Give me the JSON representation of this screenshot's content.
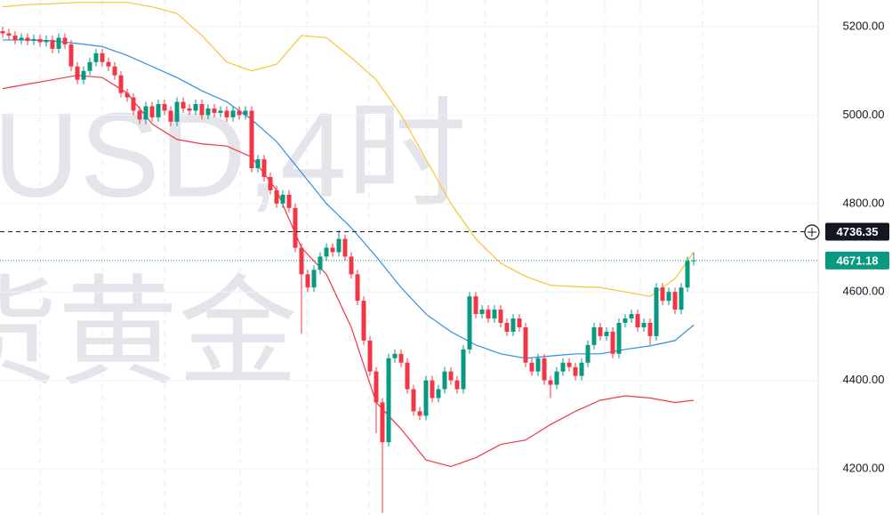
{
  "chart_data": {
    "type": "candlestick",
    "watermark": [
      "USD,4时",
      "货黄金"
    ],
    "up_color": "#089981",
    "down_color": "#f23645",
    "open": [
      5190,
      5185,
      5180,
      5170,
      5175,
      5168,
      5172,
      5165,
      5170,
      5150,
      5175,
      5160,
      5110,
      5080,
      5100,
      5120,
      5140,
      5120,
      5110,
      5090,
      5050,
      5040,
      5010,
      4990,
      5020,
      4995,
      5025,
      5010,
      4985,
      5030,
      5015,
      5010,
      5025,
      5000,
      5015,
      5005,
      5010,
      4995,
      5010,
      5000,
      5010,
      4880,
      4900,
      4860,
      4830,
      4800,
      4820,
      4790,
      4700,
      4640,
      4610,
      4650,
      4680,
      4700,
      4690,
      4720,
      4680,
      4640,
      4580,
      4490,
      4420,
      4350,
      4260,
      4450,
      4460,
      4440,
      4380,
      4330,
      4320,
      4400,
      4360,
      4380,
      4420,
      4400,
      4380,
      4470,
      4590,
      4550,
      4560,
      4540,
      4560,
      4530,
      4510,
      4540,
      4520,
      4440,
      4420,
      4450,
      4400,
      4390,
      4420,
      4440,
      4430,
      4410,
      4440,
      4480,
      4520,
      4500,
      4510,
      4460,
      4530,
      4540,
      4550,
      4520,
      4530,
      4500,
      4610,
      4580,
      4600,
      4560,
      4610,
      4670
    ],
    "high": [
      5200,
      5195,
      5190,
      5185,
      5185,
      5182,
      5182,
      5180,
      5180,
      5185,
      5185,
      5170,
      5120,
      5110,
      5130,
      5150,
      5150,
      5130,
      5120,
      5100,
      5060,
      5050,
      5020,
      5030,
      5030,
      5035,
      5035,
      5020,
      5040,
      5040,
      5025,
      5035,
      5035,
      5025,
      5025,
      5020,
      5020,
      5020,
      5020,
      5020,
      5020,
      4910,
      4910,
      4870,
      4840,
      4830,
      4830,
      4800,
      4710,
      4650,
      4660,
      4690,
      4710,
      4710,
      4740,
      4730,
      4690,
      4650,
      4590,
      4500,
      4430,
      4360,
      4460,
      4470,
      4470,
      4450,
      4390,
      4340,
      4410,
      4410,
      4390,
      4430,
      4430,
      4410,
      4480,
      4600,
      4600,
      4570,
      4570,
      4570,
      4570,
      4540,
      4550,
      4550,
      4530,
      4450,
      4460,
      4460,
      4410,
      4430,
      4450,
      4450,
      4440,
      4450,
      4490,
      4530,
      4530,
      4520,
      4520,
      4540,
      4550,
      4560,
      4560,
      4540,
      4540,
      4620,
      4620,
      4610,
      4610,
      4620,
      4680,
      4690
    ],
    "low": [
      5175,
      5170,
      5160,
      5160,
      5158,
      5158,
      5155,
      5155,
      5140,
      5140,
      5150,
      5100,
      5070,
      5070,
      5090,
      5110,
      5110,
      5100,
      5080,
      5040,
      5030,
      5000,
      4980,
      4980,
      4985,
      4985,
      5000,
      4975,
      4975,
      5005,
      5000,
      5000,
      4990,
      4990,
      4995,
      4995,
      4985,
      4985,
      4990,
      4990,
      4870,
      4870,
      4850,
      4820,
      4790,
      4790,
      4780,
      4690,
      4505,
      4600,
      4600,
      4640,
      4670,
      4680,
      4680,
      4670,
      4630,
      4570,
      4480,
      4410,
      4280,
      4100,
      4250,
      4440,
      4430,
      4370,
      4320,
      4310,
      4310,
      4350,
      4350,
      4370,
      4390,
      4370,
      4370,
      4460,
      4540,
      4540,
      4530,
      4530,
      4520,
      4500,
      4500,
      4510,
      4430,
      4410,
      4410,
      4390,
      4360,
      4380,
      4410,
      4420,
      4400,
      4400,
      4430,
      4470,
      4490,
      4490,
      4450,
      4450,
      4520,
      4530,
      4510,
      4510,
      4480,
      4490,
      4570,
      4570,
      4550,
      4550,
      4600,
      4660
    ],
    "close": [
      5185,
      5180,
      5170,
      5175,
      5168,
      5172,
      5165,
      5170,
      5150,
      5175,
      5160,
      5110,
      5080,
      5100,
      5120,
      5140,
      5120,
      5110,
      5090,
      5050,
      5040,
      5010,
      4990,
      5020,
      4995,
      5025,
      5010,
      4985,
      5030,
      5015,
      5010,
      5025,
      5000,
      5015,
      5005,
      5010,
      4995,
      5010,
      5000,
      5010,
      4880,
      4900,
      4860,
      4830,
      4800,
      4820,
      4790,
      4700,
      4640,
      4610,
      4650,
      4680,
      4700,
      4690,
      4720,
      4680,
      4640,
      4580,
      4490,
      4420,
      4350,
      4260,
      4450,
      4460,
      4440,
      4380,
      4330,
      4320,
      4400,
      4360,
      4380,
      4420,
      4400,
      4380,
      4470,
      4590,
      4550,
      4560,
      4540,
      4560,
      4530,
      4510,
      4540,
      4520,
      4440,
      4420,
      4450,
      4400,
      4390,
      4420,
      4440,
      4430,
      4410,
      4440,
      4480,
      4520,
      4500,
      4510,
      4460,
      4530,
      4540,
      4550,
      4520,
      4530,
      4500,
      4610,
      4580,
      4600,
      4560,
      4610,
      4670,
      4671.18
    ],
    "overlay_x": [
      0,
      4,
      8,
      12,
      16,
      20,
      24,
      28,
      32,
      36,
      40,
      44,
      48,
      52,
      56,
      60,
      64,
      68,
      72,
      76,
      80,
      84,
      88,
      92,
      96,
      100,
      104,
      108,
      111
    ],
    "overlays": [
      {
        "color": "#f7c530",
        "values": [
          5245,
          5250,
          5252,
          5255,
          5255,
          5255,
          5245,
          5230,
          5180,
          5120,
          5100,
          5115,
          5180,
          5175,
          5130,
          5080,
          5000,
          4900,
          4800,
          4720,
          4665,
          4635,
          4615,
          4612,
          4610,
          4600,
          4590,
          4630,
          4690
        ]
      },
      {
        "color": "#2f8fe0",
        "values": [
          5170,
          5170,
          5168,
          5162,
          5155,
          5135,
          5110,
          5085,
          5055,
          5030,
          4990,
          4940,
          4870,
          4800,
          4745,
          4680,
          4610,
          4550,
          4510,
          4480,
          4460,
          4450,
          4455,
          4460,
          4460,
          4470,
          4478,
          4490,
          4525
        ]
      },
      {
        "color": "#f23645",
        "values": [
          5060,
          5070,
          5080,
          5090,
          5085,
          5050,
          4980,
          4945,
          4935,
          4930,
          4905,
          4830,
          4700,
          4640,
          4520,
          4350,
          4290,
          4220,
          4205,
          4225,
          4255,
          4265,
          4300,
          4330,
          4355,
          4365,
          4360,
          4350,
          4355
        ]
      }
    ],
    "ylim": [
      4095.4,
      5260.4
    ],
    "yticks": [
      {
        "value": 4200,
        "label": "4200.00"
      },
      {
        "value": 4400,
        "label": "4400.00"
      },
      {
        "value": 4600,
        "label": "4600.00"
      },
      {
        "value": 4800,
        "label": "4800.00"
      },
      {
        "value": 5000,
        "label": "5000.00"
      },
      {
        "value": 5200,
        "label": "5200.00"
      }
    ],
    "grid": true,
    "price_lines": [
      {
        "value": 4736.35,
        "color": "#131722",
        "style": "dashed"
      },
      {
        "value": 4671.18,
        "color": "#089981",
        "style": "dotted"
      }
    ]
  }
}
